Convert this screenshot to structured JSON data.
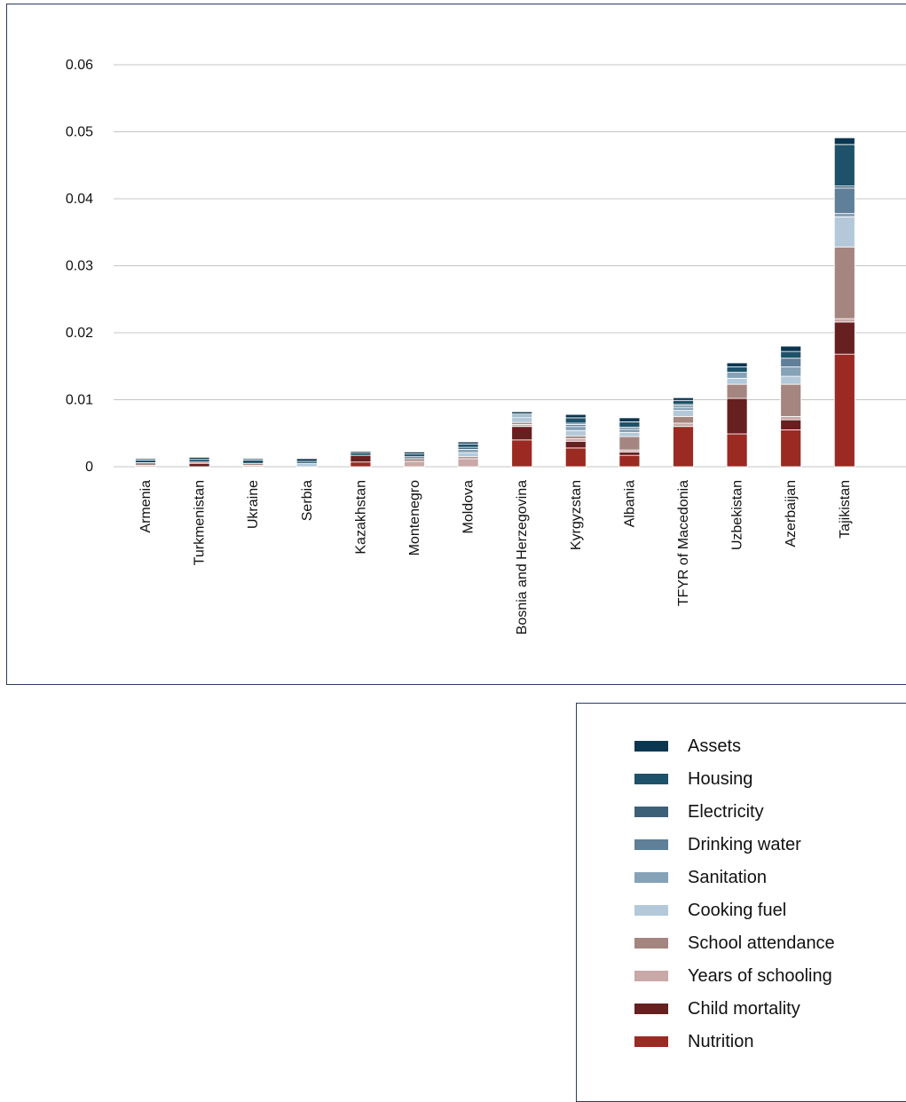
{
  "chart_data": {
    "type": "bar",
    "stacked": true,
    "title": "",
    "xlabel": "",
    "ylabel": "",
    "ylim": [
      0,
      0.06
    ],
    "yticks": [
      0,
      0.01,
      0.02,
      0.03,
      0.04,
      0.05,
      0.06
    ],
    "ytick_labels": [
      "0",
      "0.01",
      "0.02",
      "0.03",
      "0.04",
      "0.05",
      "0.06"
    ],
    "grid": true,
    "legend_position": "bottom-right",
    "categories": [
      "Armenia",
      "Turkmenistan",
      "Ukraine",
      "Serbia",
      "Kazakhstan",
      "Montenegro",
      "Moldova",
      "Bosnia and Herzegovina",
      "Kyrgyzstan",
      "Albania",
      "TFYR of Macedonia",
      "Uzbekistan",
      "Azerbaijan",
      "Tajikistan"
    ],
    "series": [
      {
        "name": "Nutrition",
        "color": "#9b2a22",
        "values": [
          0,
          0,
          0,
          0,
          0.0007,
          0,
          0,
          0.004,
          0.0028,
          0.0017,
          0.006,
          0.0049,
          0.0055,
          0.0168
        ]
      },
      {
        "name": "Child mortality",
        "color": "#66201f",
        "values": [
          0,
          0.0005,
          0,
          0,
          0.001,
          0,
          0,
          0.002,
          0.001,
          0.0005,
          0,
          0.0053,
          0.0015,
          0.0048
        ]
      },
      {
        "name": "Years of schooling",
        "color": "#c9a8a8",
        "values": [
          0.0002,
          0,
          0.0002,
          0,
          0,
          0.0008,
          0.0012,
          0.0003,
          0.0004,
          0.0003,
          0.0005,
          0,
          0.0005,
          0.0005
        ]
      },
      {
        "name": "School attendance",
        "color": "#a5857f",
        "values": [
          0.0004,
          0.0002,
          0.0003,
          0,
          0,
          0.0004,
          0.0003,
          0.0003,
          0.0004,
          0.002,
          0.001,
          0.0021,
          0.0048,
          0.0107
        ]
      },
      {
        "name": "Cooking fuel",
        "color": "#b3c9d9",
        "values": [
          0,
          0,
          0,
          0.0005,
          0,
          0,
          0.0006,
          0.0008,
          0.0008,
          0.0006,
          0.0009,
          0.0009,
          0.0012,
          0.0045
        ]
      },
      {
        "name": "Sanitation",
        "color": "#86a2b7",
        "values": [
          0,
          0,
          0,
          0,
          0,
          0,
          0.0005,
          0.0003,
          0.0006,
          0.0005,
          0.0004,
          0.0009,
          0.0014,
          0.0005
        ]
      },
      {
        "name": "Drinking water",
        "color": "#607f98",
        "values": [
          0,
          0,
          0,
          0,
          0,
          0.0003,
          0,
          0,
          0.0003,
          0.0003,
          0.0003,
          0,
          0.0013,
          0.0038
        ]
      },
      {
        "name": "Electricity",
        "color": "#3d6079",
        "values": [
          0,
          0,
          0,
          0,
          0,
          0,
          0.0003,
          0,
          0.0002,
          0,
          0.0002,
          0,
          0,
          0.0003
        ]
      },
      {
        "name": "Housing",
        "color": "#1e526a",
        "values": [
          0.0004,
          0.0004,
          0.0005,
          0.0003,
          0.0004,
          0.0004,
          0.0005,
          0.0002,
          0.0008,
          0.0008,
          0.0006,
          0.0008,
          0.001,
          0.0062
        ]
      },
      {
        "name": "Assets",
        "color": "#0b3650",
        "values": [
          0.0002,
          0.0003,
          0.0002,
          0.0004,
          0.0002,
          0.0003,
          0.0003,
          0.0003,
          0.0005,
          0.0006,
          0.0004,
          0.0006,
          0.0008,
          0.001
        ]
      }
    ]
  },
  "legend": {
    "items": [
      {
        "label": "Assets",
        "color": "#0b3650"
      },
      {
        "label": "Housing",
        "color": "#1e526a"
      },
      {
        "label": "Electricity",
        "color": "#3d6079"
      },
      {
        "label": "Drinking water",
        "color": "#607f98"
      },
      {
        "label": "Sanitation",
        "color": "#86a2b7"
      },
      {
        "label": "Cooking fuel",
        "color": "#b3c9d9"
      },
      {
        "label": "School attendance",
        "color": "#a5857f"
      },
      {
        "label": "Years of schooling",
        "color": "#c9a8a8"
      },
      {
        "label": "Child mortality",
        "color": "#66201f"
      },
      {
        "label": "Nutrition",
        "color": "#9b2a22"
      }
    ]
  }
}
